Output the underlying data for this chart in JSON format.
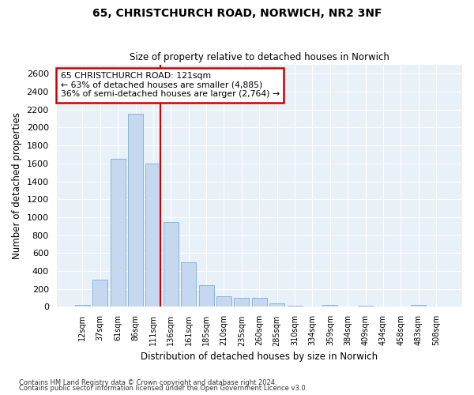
{
  "title1": "65, CHRISTCHURCH ROAD, NORWICH, NR2 3NF",
  "title2": "Size of property relative to detached houses in Norwich",
  "xlabel": "Distribution of detached houses by size in Norwich",
  "ylabel": "Number of detached properties",
  "categories": [
    "12sqm",
    "37sqm",
    "61sqm",
    "86sqm",
    "111sqm",
    "136sqm",
    "161sqm",
    "185sqm",
    "210sqm",
    "235sqm",
    "260sqm",
    "285sqm",
    "310sqm",
    "334sqm",
    "359sqm",
    "384sqm",
    "409sqm",
    "434sqm",
    "458sqm",
    "483sqm",
    "508sqm"
  ],
  "values": [
    20,
    300,
    1650,
    2150,
    1600,
    950,
    500,
    245,
    120,
    105,
    100,
    40,
    15,
    5,
    20,
    5,
    15,
    5,
    0,
    20,
    0
  ],
  "bar_color": "#c5d8ef",
  "bar_edge_color": "#7bafd4",
  "red_line_x": 4.4,
  "annotation_line1": "65 CHRISTCHURCH ROAD: 121sqm",
  "annotation_line2": "← 63% of detached houses are smaller (4,885)",
  "annotation_line3": "36% of semi-detached houses are larger (2,764) →",
  "annotation_box_edge_color": "#cc0000",
  "ylim": [
    0,
    2700
  ],
  "yticks": [
    0,
    200,
    400,
    600,
    800,
    1000,
    1200,
    1400,
    1600,
    1800,
    2000,
    2200,
    2400,
    2600
  ],
  "footer1": "Contains HM Land Registry data © Crown copyright and database right 2024.",
  "footer2": "Contains public sector information licensed under the Open Government Licence v3.0.",
  "bg_color": "#ffffff",
  "plot_bg_color": "#e8f0f8",
  "grid_color": "#ffffff"
}
